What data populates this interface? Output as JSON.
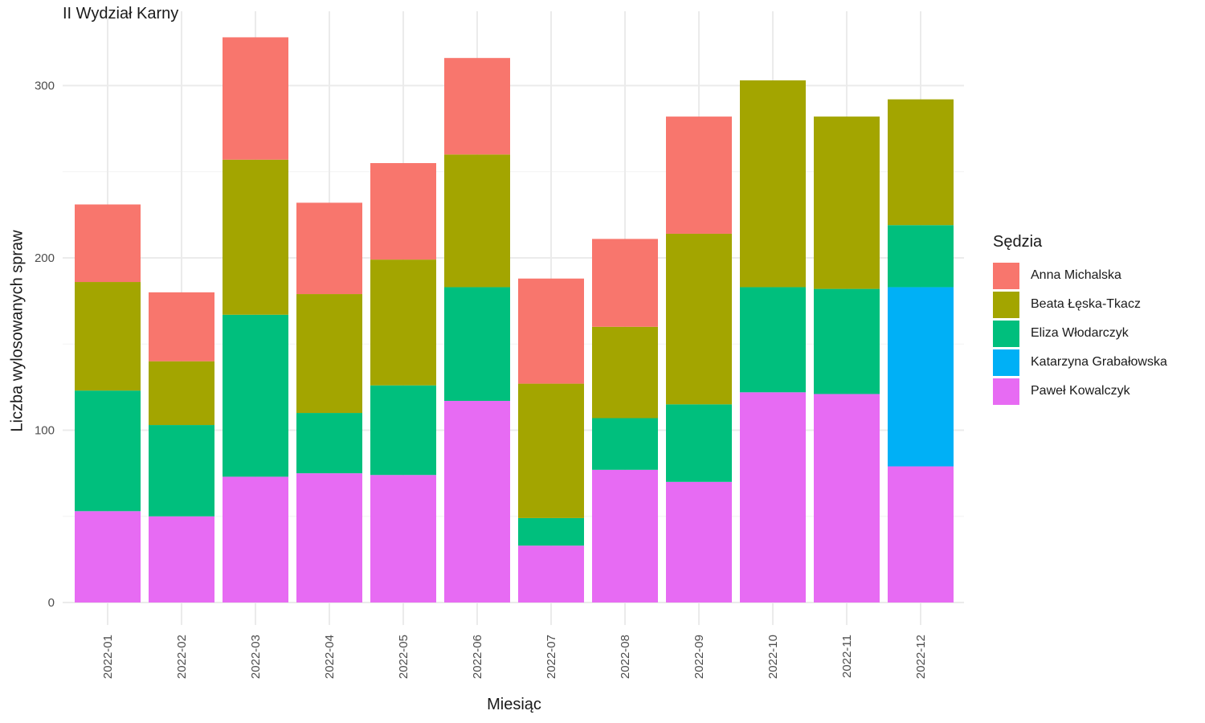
{
  "chart_data": {
    "type": "bar",
    "stacked": true,
    "title": "II Wydział Karny",
    "xlabel": "Miesiąc",
    "ylabel": "Liczba wylosowanych spraw",
    "ylim": [
      0,
      330
    ],
    "yticks": [
      0,
      100,
      200,
      300
    ],
    "grid": true,
    "legend_title": "Sędzia",
    "legend_position": "right",
    "categories": [
      "2022-01",
      "2022-02",
      "2022-03",
      "2022-04",
      "2022-05",
      "2022-06",
      "2022-07",
      "2022-08",
      "2022-09",
      "2022-10",
      "2022-11",
      "2022-12"
    ],
    "series": [
      {
        "name": "Anna Michalska",
        "color": "#F8766D",
        "values": [
          45,
          40,
          71,
          53,
          56,
          56,
          61,
          51,
          68,
          0,
          0,
          0
        ]
      },
      {
        "name": "Beata Łęska-Tkacz",
        "color": "#A3A500",
        "values": [
          63,
          37,
          90,
          69,
          73,
          77,
          78,
          53,
          99,
          120,
          100,
          73
        ]
      },
      {
        "name": "Eliza Włodarczyk",
        "color": "#00BF7D",
        "values": [
          70,
          53,
          94,
          35,
          52,
          66,
          16,
          30,
          45,
          61,
          61,
          36
        ]
      },
      {
        "name": "Katarzyna Grabałowska",
        "color": "#00B0F6",
        "values": [
          0,
          0,
          0,
          0,
          0,
          0,
          0,
          0,
          0,
          0,
          0,
          104
        ]
      },
      {
        "name": "Paweł Kowalczyk",
        "color": "#E76BF3",
        "values": [
          53,
          50,
          73,
          75,
          74,
          117,
          33,
          77,
          70,
          122,
          121,
          79
        ]
      }
    ],
    "stack_order_bottom_to_top": [
      "Paweł Kowalczyk",
      "Katarzyna Grabałowska",
      "Eliza Włodarczyk",
      "Beata Łęska-Tkacz",
      "Anna Michalska"
    ]
  }
}
